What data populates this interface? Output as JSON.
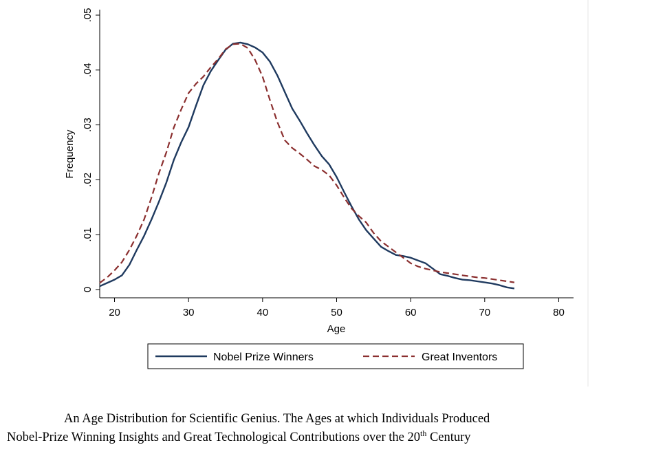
{
  "chart_data": {
    "type": "line",
    "xlabel": "Age",
    "ylabel": "Frequency",
    "xlim": [
      18,
      82
    ],
    "ylim": [
      0,
      0.05
    ],
    "xticks": [
      {
        "value": 20,
        "label": "20"
      },
      {
        "value": 30,
        "label": "30"
      },
      {
        "value": 40,
        "label": "40"
      },
      {
        "value": 50,
        "label": "50"
      },
      {
        "value": 60,
        "label": "60"
      },
      {
        "value": 70,
        "label": "70"
      },
      {
        "value": 80,
        "label": "80"
      }
    ],
    "yticks": [
      {
        "value": 0,
        "label": "0"
      },
      {
        "value": 0.01,
        "label": ".01"
      },
      {
        "value": 0.02,
        "label": ".02"
      },
      {
        "value": 0.03,
        "label": ".03"
      },
      {
        "value": 0.04,
        "label": ".04"
      },
      {
        "value": 0.05,
        "label": ".05"
      }
    ],
    "grid": false,
    "legend_position": "bottom",
    "series": [
      {
        "name": "Nobel Prize Winners",
        "color": "#1f3a5f",
        "style": "solid",
        "points": [
          [
            18,
            0.0006
          ],
          [
            19,
            0.0012
          ],
          [
            20,
            0.0018
          ],
          [
            21,
            0.0026
          ],
          [
            22,
            0.0045
          ],
          [
            23,
            0.0072
          ],
          [
            24,
            0.0098
          ],
          [
            25,
            0.0128
          ],
          [
            26,
            0.016
          ],
          [
            27,
            0.0195
          ],
          [
            28,
            0.0236
          ],
          [
            29,
            0.0268
          ],
          [
            30,
            0.0296
          ],
          [
            31,
            0.0335
          ],
          [
            32,
            0.0372
          ],
          [
            33,
            0.0398
          ],
          [
            34,
            0.0418
          ],
          [
            35,
            0.0437
          ],
          [
            36,
            0.0448
          ],
          [
            37,
            0.045
          ],
          [
            38,
            0.0447
          ],
          [
            39,
            0.0441
          ],
          [
            40,
            0.0432
          ],
          [
            41,
            0.0415
          ],
          [
            42,
            0.039
          ],
          [
            43,
            0.036
          ],
          [
            44,
            0.033
          ],
          [
            45,
            0.0308
          ],
          [
            46,
            0.0285
          ],
          [
            47,
            0.0263
          ],
          [
            48,
            0.0243
          ],
          [
            49,
            0.0228
          ],
          [
            50,
            0.0205
          ],
          [
            51,
            0.0178
          ],
          [
            52,
            0.0152
          ],
          [
            53,
            0.0128
          ],
          [
            54,
            0.0108
          ],
          [
            55,
            0.0093
          ],
          [
            56,
            0.0078
          ],
          [
            57,
            0.007
          ],
          [
            58,
            0.0063
          ],
          [
            59,
            0.0061
          ],
          [
            60,
            0.0058
          ],
          [
            61,
            0.0053
          ],
          [
            62,
            0.0048
          ],
          [
            63,
            0.0038
          ],
          [
            64,
            0.0028
          ],
          [
            65,
            0.0025
          ],
          [
            66,
            0.0021
          ],
          [
            67,
            0.0018
          ],
          [
            68,
            0.0017
          ],
          [
            69,
            0.0015
          ],
          [
            70,
            0.0013
          ],
          [
            71,
            0.0011
          ],
          [
            72,
            0.0008
          ],
          [
            73,
            0.0004
          ],
          [
            74,
            0.0002
          ]
        ]
      },
      {
        "name": "Great Inventors",
        "color": "#8b2f2f",
        "style": "dashed",
        "points": [
          [
            18,
            0.0012
          ],
          [
            19,
            0.0022
          ],
          [
            20,
            0.0035
          ],
          [
            21,
            0.005
          ],
          [
            22,
            0.0072
          ],
          [
            23,
            0.0098
          ],
          [
            24,
            0.0128
          ],
          [
            25,
            0.0168
          ],
          [
            26,
            0.0212
          ],
          [
            27,
            0.025
          ],
          [
            28,
            0.0295
          ],
          [
            29,
            0.0328
          ],
          [
            30,
            0.0358
          ],
          [
            31,
            0.0375
          ],
          [
            32,
            0.0388
          ],
          [
            33,
            0.0405
          ],
          [
            34,
            0.042
          ],
          [
            35,
            0.0438
          ],
          [
            36,
            0.0447
          ],
          [
            37,
            0.0448
          ],
          [
            38,
            0.044
          ],
          [
            39,
            0.0418
          ],
          [
            40,
            0.0388
          ],
          [
            41,
            0.0345
          ],
          [
            42,
            0.0305
          ],
          [
            43,
            0.0272
          ],
          [
            44,
            0.0258
          ],
          [
            45,
            0.0248
          ],
          [
            46,
            0.0237
          ],
          [
            47,
            0.0225
          ],
          [
            48,
            0.0218
          ],
          [
            49,
            0.0208
          ],
          [
            50,
            0.019
          ],
          [
            51,
            0.0168
          ],
          [
            52,
            0.0148
          ],
          [
            53,
            0.0134
          ],
          [
            54,
            0.0122
          ],
          [
            55,
            0.0103
          ],
          [
            56,
            0.0088
          ],
          [
            57,
            0.0078
          ],
          [
            58,
            0.0068
          ],
          [
            59,
            0.0058
          ],
          [
            60,
            0.0048
          ],
          [
            61,
            0.0042
          ],
          [
            62,
            0.0038
          ],
          [
            63,
            0.0035
          ],
          [
            64,
            0.0032
          ],
          [
            65,
            0.003
          ],
          [
            66,
            0.0028
          ],
          [
            67,
            0.0026
          ],
          [
            68,
            0.0024
          ],
          [
            69,
            0.0022
          ],
          [
            70,
            0.0021
          ],
          [
            71,
            0.0019
          ],
          [
            72,
            0.0017
          ],
          [
            73,
            0.0015
          ],
          [
            74,
            0.0013
          ]
        ]
      }
    ]
  },
  "caption": {
    "line1": "An Age Distribution for Scientific Genius.  The Ages at which Individuals Produced",
    "line2_prefix": "Nobel-Prize Winning Insights and Great Technological Contributions over the 20",
    "line2_sup": "th",
    "line2_suffix": " Century"
  }
}
